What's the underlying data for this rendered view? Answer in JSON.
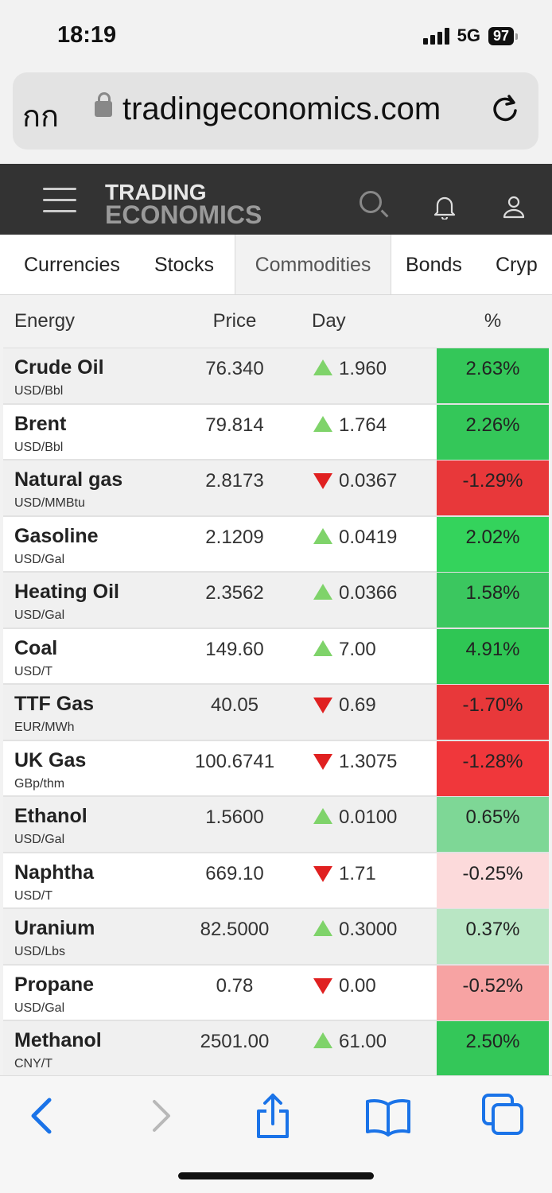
{
  "status": {
    "time": "18:19",
    "network": "5G",
    "battery": "97"
  },
  "browser": {
    "text_size_label": "กก",
    "url": "tradingeconomics.com"
  },
  "header": {
    "logo_line1": "TRADING",
    "logo_line2": "ECONOMICS"
  },
  "tabs": [
    {
      "label": "Currencies"
    },
    {
      "label": "Stocks"
    },
    {
      "label": "Commodities",
      "active": true
    },
    {
      "label": "Bonds"
    },
    {
      "label": "Cryp"
    }
  ],
  "table": {
    "columns": {
      "name": "Energy",
      "price": "Price",
      "day": "Day",
      "pct": "%"
    },
    "rows": [
      {
        "name": "Crude Oil",
        "unit": "USD/Bbl",
        "price": "76.340",
        "direction": "up",
        "day": "1.960",
        "pct": "2.63%",
        "pct_color": "#34c759"
      },
      {
        "name": "Brent",
        "unit": "USD/Bbl",
        "price": "79.814",
        "direction": "up",
        "day": "1.764",
        "pct": "2.26%",
        "pct_color": "#34c759"
      },
      {
        "name": "Natural gas",
        "unit": "USD/MMBtu",
        "price": "2.8173",
        "direction": "down",
        "day": "0.0367",
        "pct": "-1.29%",
        "pct_color": "#e8383a"
      },
      {
        "name": "Gasoline",
        "unit": "USD/Gal",
        "price": "2.1209",
        "direction": "up",
        "day": "0.0419",
        "pct": "2.02%",
        "pct_color": "#34d35c"
      },
      {
        "name": "Heating Oil",
        "unit": "USD/Gal",
        "price": "2.3562",
        "direction": "up",
        "day": "0.0366",
        "pct": "1.58%",
        "pct_color": "#3bc75f"
      },
      {
        "name": "Coal",
        "unit": "USD/T",
        "price": "149.60",
        "direction": "up",
        "day": "7.00",
        "pct": "4.91%",
        "pct_color": "#2fc654"
      },
      {
        "name": "TTF Gas",
        "unit": "EUR/MWh",
        "price": "40.05",
        "direction": "down",
        "day": "0.69",
        "pct": "-1.70%",
        "pct_color": "#e8383a"
      },
      {
        "name": "UK Gas",
        "unit": "GBp/thm",
        "price": "100.6741",
        "direction": "down",
        "day": "1.3075",
        "pct": "-1.28%",
        "pct_color": "#f0373b"
      },
      {
        "name": "Ethanol",
        "unit": "USD/Gal",
        "price": "1.5600",
        "direction": "up",
        "day": "0.0100",
        "pct": "0.65%",
        "pct_color": "#7ed796"
      },
      {
        "name": "Naphtha",
        "unit": "USD/T",
        "price": "669.10",
        "direction": "down",
        "day": "1.71",
        "pct": "-0.25%",
        "pct_color": "#fcdadb"
      },
      {
        "name": "Uranium",
        "unit": "USD/Lbs",
        "price": "82.5000",
        "direction": "up",
        "day": "0.3000",
        "pct": "0.37%",
        "pct_color": "#b9e6c4"
      },
      {
        "name": "Propane",
        "unit": "USD/Gal",
        "price": "0.78",
        "direction": "down",
        "day": "0.00",
        "pct": "-0.52%",
        "pct_color": "#f7a3a3"
      },
      {
        "name": "Methanol",
        "unit": "CNY/T",
        "price": "2501.00",
        "direction": "up",
        "day": "61.00",
        "pct": "2.50%",
        "pct_color": "#34c759"
      }
    ]
  },
  "colors": {
    "up_arrow": "#7fd36a",
    "down_arrow": "#e02020",
    "toolbar_icon": "#1a73e8"
  },
  "toolbar": {
    "icons": [
      "back-icon",
      "forward-icon",
      "share-icon",
      "bookmarks-icon",
      "tabs-icon"
    ]
  }
}
